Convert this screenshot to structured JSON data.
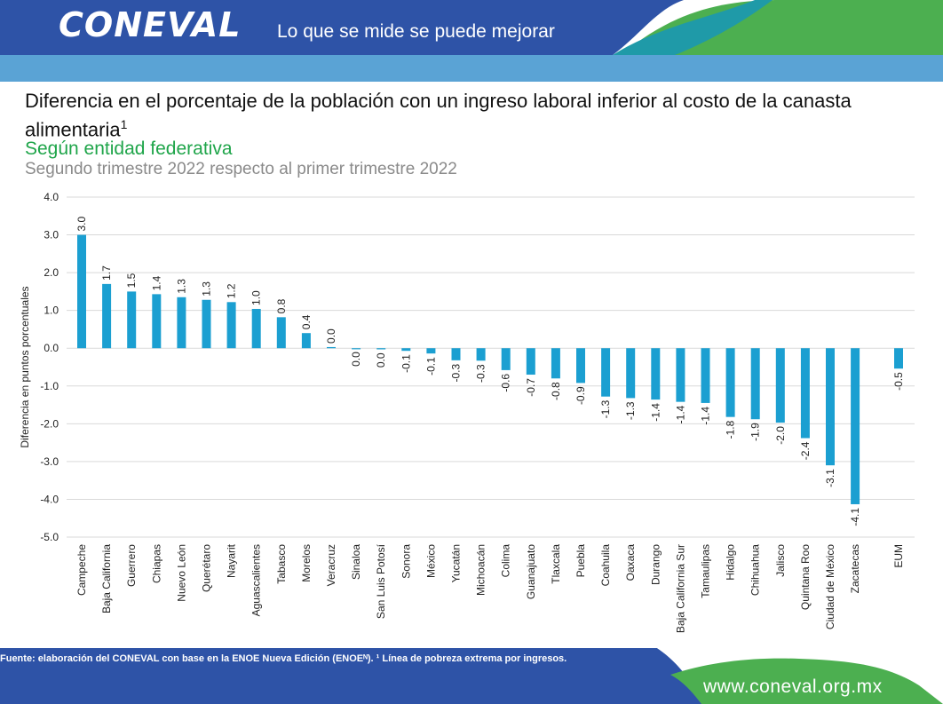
{
  "header": {
    "logo": "CONEVAL",
    "tagline": "Lo que se mide se puede mejorar"
  },
  "title": "Diferencia en el porcentaje de la población con un ingreso laboral inferior al costo de la canasta alimentaria",
  "title_sup": "1",
  "subtitle": "Según entidad federativa",
  "subtitle2": "Segundo trimestre 2022 respecto al primer trimestre 2022",
  "footer": {
    "source": "Fuente: elaboración del CONEVAL con base en la ENOE Nueva Edición (ENOEᴺ). ¹ Línea de pobreza extrema por ingresos.",
    "website": "www.coneval.org.mx"
  },
  "colors": {
    "bar": "#1b9fd1",
    "header_blue": "#2e53a7",
    "header_light": "#5aa3d5",
    "green": "#4caf50"
  },
  "chart_data": {
    "type": "bar",
    "ylabel": "Diferencia en puntos porcentuales",
    "ylim": [
      -5,
      4
    ],
    "yticks": [
      "4.0",
      "3.0",
      "2.0",
      "1.0",
      "0.0",
      "-1.0",
      "-2.0",
      "-3.0",
      "-4.0",
      "-5.0"
    ],
    "grid": true,
    "categories": [
      "Campeche",
      "Baja California",
      "Guerrero",
      "Chiapas",
      "Nuevo León",
      "Querétaro",
      "Nayarit",
      "Aguascalientes",
      "Tabasco",
      "Morelos",
      "Veracruz",
      "Sinaloa",
      "San Luis Potosí",
      "Sonora",
      "México",
      "Yucatán",
      "Michoacán",
      "Colima",
      "Guanajuato",
      "Tlaxcala",
      "Puebla",
      "Coahuila",
      "Oaxaca",
      "Durango",
      "Baja California Sur",
      "Tamaulipas",
      "Hidalgo",
      "Chihuahua",
      "Jalisco",
      "Quintana Roo",
      "Ciudad de México",
      "Zacatecas",
      "EUM"
    ],
    "values": [
      3.0,
      1.7,
      1.5,
      1.43,
      1.35,
      1.28,
      1.22,
      1.04,
      0.82,
      0.4,
      0.03,
      0.0,
      -0.03,
      -0.07,
      -0.14,
      -0.32,
      -0.33,
      -0.58,
      -0.7,
      -0.8,
      -0.92,
      -1.28,
      -1.32,
      -1.36,
      -1.42,
      -1.45,
      -1.82,
      -1.88,
      -1.97,
      -2.38,
      -3.1,
      -4.13,
      -0.54
    ],
    "labels": [
      "3.0",
      "1.7",
      "1.5",
      "1.4",
      "1.3",
      "1.3",
      "1.2",
      "1.0",
      "0.8",
      "0.4",
      "0.0",
      "0.0",
      "0.0",
      "-0.1",
      "-0.1",
      "-0.3",
      "-0.3",
      "-0.6",
      "-0.7",
      "-0.8",
      "-0.9",
      "-1.3",
      "-1.3",
      "-1.4",
      "-1.4",
      "-1.4",
      "-1.8",
      "-1.9",
      "-2.0",
      "-2.4",
      "-3.1",
      "-4.1",
      "-0.5"
    ]
  }
}
